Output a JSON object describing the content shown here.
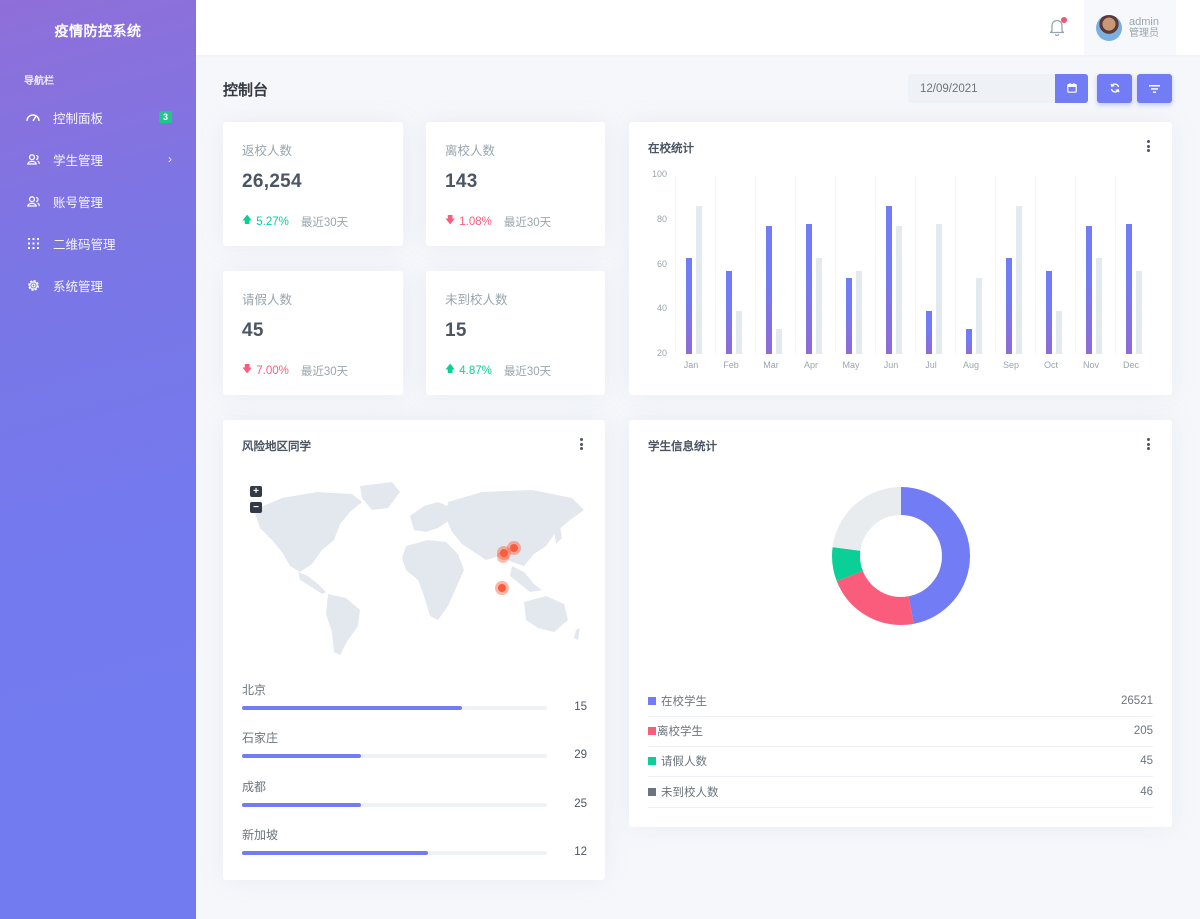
{
  "app": {
    "title": "疫情防控系统"
  },
  "sidebar": {
    "section_title": "导航栏",
    "items": [
      {
        "label": "控制面板",
        "icon": "gauge-icon",
        "badge": "3"
      },
      {
        "label": "学生管理",
        "icon": "users-icon",
        "chevron": "›"
      },
      {
        "label": "账号管理",
        "icon": "users-icon"
      },
      {
        "label": "二维码管理",
        "icon": "grid-dots-icon"
      },
      {
        "label": "系统管理",
        "icon": "gear-icon"
      }
    ]
  },
  "topbar": {
    "notification_icon": "bell-icon",
    "user": {
      "name": "admin",
      "role": "管理员"
    }
  },
  "page": {
    "title": "控制台",
    "date_value": "12/09/2021",
    "buttons": [
      "calendar-icon",
      "refresh-icon",
      "filter-icon"
    ]
  },
  "stats": [
    {
      "title": "返校人数",
      "value": "26,254",
      "change": "5.27%",
      "direction": "up",
      "period": "最近30天"
    },
    {
      "title": "离校人数",
      "value": "143",
      "change": "1.08%",
      "direction": "down",
      "period": "最近30天"
    },
    {
      "title": "请假人数",
      "value": "45",
      "change": "7.00%",
      "direction": "down",
      "period": "最近30天"
    },
    {
      "title": "未到校人数",
      "value": "15",
      "change": "4.87%",
      "direction": "up",
      "period": "最近30天"
    }
  ],
  "bar_card": {
    "title": "在校统计"
  },
  "map_card": {
    "title": "风险地区同学",
    "zoom_in": "+",
    "zoom_out": "−",
    "locations": [
      {
        "name": "北京",
        "value": "15",
        "percent": 72
      },
      {
        "name": "石家庄",
        "value": "29",
        "percent": 39
      },
      {
        "name": "成都",
        "value": "25",
        "percent": 39
      },
      {
        "name": "新加坡",
        "value": "12",
        "percent": 61
      }
    ]
  },
  "donut_card": {
    "title": "学生信息统计",
    "legend": [
      {
        "label": "在校学生",
        "value": "26521",
        "color": "#727cf5"
      },
      {
        "label": "离校学生",
        "value": "205",
        "color": "#fa5c7c"
      },
      {
        "label": "请假人数",
        "value": "45",
        "color": "#0acf97"
      },
      {
        "label": "未到校人数",
        "value": "46",
        "color": "#6c757d"
      }
    ]
  },
  "colors": {
    "primary": "#727cf5",
    "success": "#0acf97",
    "danger": "#fa5c7c",
    "muted_bar": "#e3eaef"
  },
  "chart_data": [
    {
      "type": "bar",
      "title": "在校统计",
      "categories": [
        "Jan",
        "Feb",
        "Mar",
        "Apr",
        "May",
        "Jun",
        "Jul",
        "Aug",
        "Sep",
        "Oct",
        "Nov",
        "Dec"
      ],
      "series": [
        {
          "name": "series-1",
          "color": "#727cf5",
          "values": [
            63,
            57,
            77,
            78,
            54,
            86,
            39,
            31,
            63,
            57,
            77,
            78
          ]
        },
        {
          "name": "series-2",
          "color": "#e3eaef",
          "values": [
            86,
            39,
            31,
            63,
            57,
            77,
            78,
            54,
            86,
            39,
            63,
            57
          ]
        }
      ],
      "yticks": [
        20,
        40,
        60,
        80,
        100
      ],
      "ylim": [
        20,
        100
      ],
      "xlabel": "",
      "ylabel": "",
      "grid": "vertical-faint",
      "legend": "none"
    },
    {
      "type": "pie",
      "title": "学生信息统计",
      "style": "donut",
      "labels": [
        "在校学生",
        "离校学生",
        "请假人数",
        "未到校人数"
      ],
      "values": [
        26521,
        205,
        45,
        46
      ],
      "visual_share_percent": [
        47,
        22,
        8,
        23
      ],
      "colors": [
        "#727cf5",
        "#fa5c7c",
        "#0acf97",
        "#e9ecef"
      ]
    }
  ]
}
